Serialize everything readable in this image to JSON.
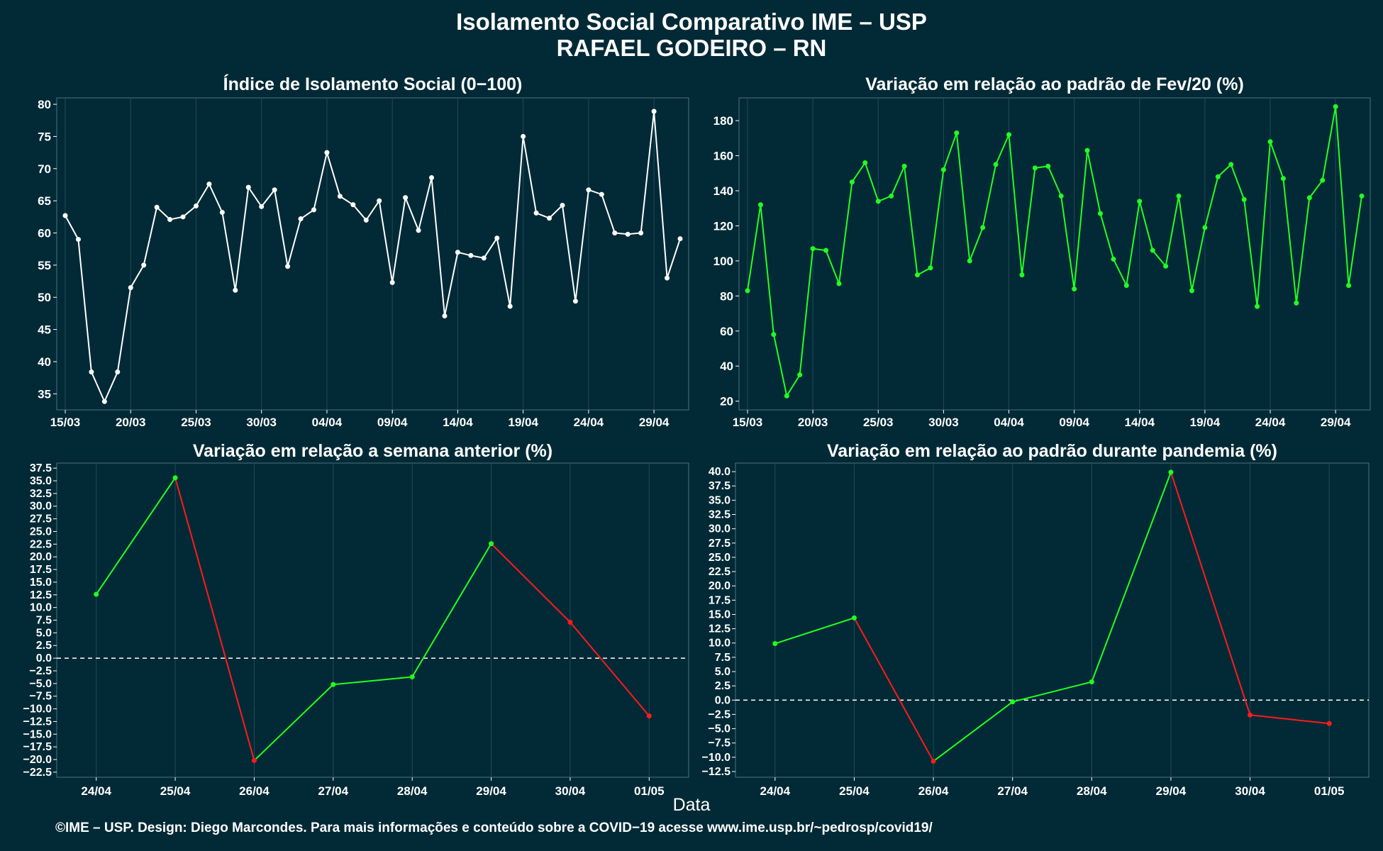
{
  "title_line1": "Isolamento Social Comparativo IME – USP",
  "title_line2": "RAFAEL GODEIRO – RN",
  "xlabel": "Data",
  "footer": "©IME – USP. Design: Diego Marcondes. Para mais informações e conteúdo sobre a COVID−19 acesse www.ime.usp.br/~pedrosp/covid19/",
  "colors": {
    "background": "#022a36",
    "white": "#ffffff",
    "green": "#22ff22",
    "red": "#ff1a1a"
  },
  "chart_data": [
    {
      "type": "line",
      "title": "Índice de Isolamento Social (0−100)",
      "x_start": "15/03",
      "x_tick_labels": [
        "15/03",
        "20/03",
        "25/03",
        "30/03",
        "04/04",
        "09/04",
        "14/04",
        "19/04",
        "24/04",
        "29/04"
      ],
      "y_ticks": [
        35,
        40,
        45,
        50,
        55,
        60,
        65,
        70,
        75,
        80
      ],
      "ylim": [
        32.5,
        81
      ],
      "color": "#ffffff",
      "values": [
        62.7,
        59.0,
        38.4,
        33.8,
        38.4,
        51.5,
        55.0,
        64.0,
        62.1,
        62.5,
        64.2,
        67.6,
        63.2,
        51.1,
        67.1,
        64.1,
        66.7,
        54.8,
        62.2,
        63.6,
        72.5,
        65.7,
        64.4,
        62.0,
        65.0,
        52.3,
        65.5,
        60.4,
        68.6,
        47.1,
        57.0,
        56.5,
        56.1,
        59.2,
        48.6,
        75.0,
        63.1,
        62.3,
        64.3,
        49.4,
        66.7,
        66.0,
        60.0,
        59.8,
        60.0,
        78.9,
        53.0,
        59.1
      ]
    },
    {
      "type": "line",
      "title": "Variação em relação ao padrão de Fev/20 (%)",
      "x_start": "15/03",
      "x_tick_labels": [
        "15/03",
        "20/03",
        "25/03",
        "30/03",
        "04/04",
        "09/04",
        "14/04",
        "19/04",
        "24/04",
        "29/04"
      ],
      "y_ticks": [
        20,
        40,
        60,
        80,
        100,
        120,
        140,
        160,
        180
      ],
      "ylim": [
        15,
        193
      ],
      "color": "#22ff22",
      "values": [
        83,
        132,
        58,
        23,
        35,
        107,
        106,
        87,
        145,
        156,
        134,
        137,
        154,
        92,
        96,
        152,
        173,
        100,
        119,
        155,
        172,
        92,
        153,
        154,
        137,
        84,
        163,
        127,
        101,
        86,
        134,
        106,
        97,
        137,
        83,
        119,
        148,
        155,
        135,
        74,
        168,
        147,
        76,
        136,
        146,
        188,
        86,
        137
      ]
    },
    {
      "type": "line",
      "title": "Variação em relação a semana anterior (%)",
      "categories": [
        "24/04",
        "25/04",
        "26/04",
        "27/04",
        "28/04",
        "29/04",
        "30/04",
        "01/05"
      ],
      "y_tick_labels": [
        "−22.5",
        "−20.0",
        "−17.5",
        "−15.0",
        "−12.5",
        "−10.0",
        "−7.5",
        "−5.0",
        "−2.5",
        "0.0",
        "2.5",
        "5.0",
        "7.5",
        "10.0",
        "12.5",
        "15.0",
        "17.5",
        "20.0",
        "22.5",
        "25.0",
        "27.5",
        "30.0",
        "32.5",
        "35.0",
        "37.5"
      ],
      "ylim": [
        -23.5,
        38.5
      ],
      "positive_color": "#22ff22",
      "negative_color": "#ff1a1a",
      "reference_line": 0,
      "values": [
        12.6,
        35.6,
        -20.2,
        -5.2,
        -3.7,
        22.6,
        7.1,
        -11.4
      ]
    },
    {
      "type": "line",
      "title": "Variação em relação ao padrão durante pandemia (%)",
      "categories": [
        "24/04",
        "25/04",
        "26/04",
        "27/04",
        "28/04",
        "29/04",
        "30/04",
        "01/05"
      ],
      "y_tick_labels": [
        "−12.5",
        "−10.0",
        "−7.5",
        "−5.0",
        "−2.5",
        "0.0",
        "2.5",
        "5.0",
        "7.5",
        "10.0",
        "12.5",
        "15.0",
        "17.5",
        "20.0",
        "22.5",
        "25.0",
        "27.5",
        "30.0",
        "32.5",
        "35.0",
        "37.5",
        "40.0"
      ],
      "ylim": [
        -13.5,
        41.5
      ],
      "positive_color": "#22ff22",
      "negative_color": "#ff1a1a",
      "reference_line": 0,
      "values": [
        9.9,
        14.4,
        -10.7,
        -0.3,
        3.2,
        39.9,
        -2.6,
        -4.1
      ]
    }
  ]
}
